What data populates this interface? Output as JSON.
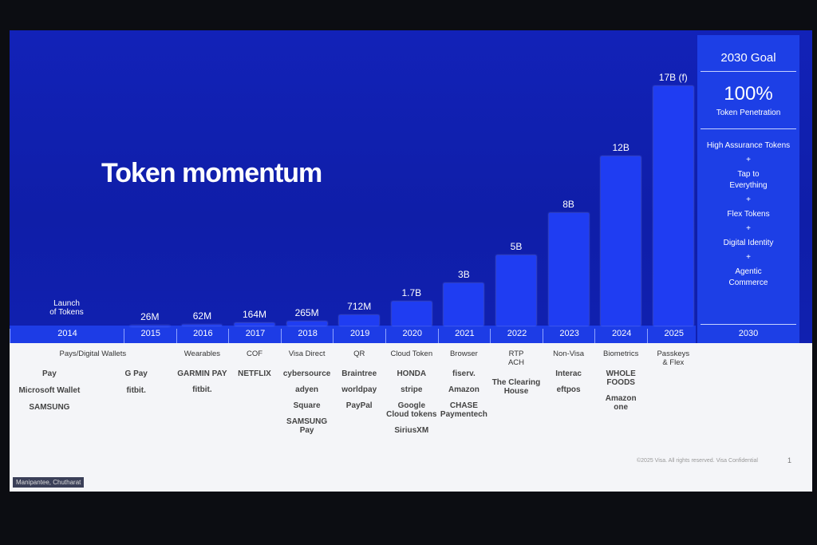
{
  "title": "Token momentum",
  "chart_data": {
    "type": "bar",
    "categories": [
      "2014",
      "2015",
      "2016",
      "2017",
      "2018",
      "2019",
      "2020",
      "2021",
      "2022",
      "2023",
      "2024",
      "2025"
    ],
    "values": [
      null,
      26,
      62,
      164,
      265,
      712,
      1700,
      3000,
      5000,
      8000,
      12000,
      17000
    ],
    "value_labels": [
      null,
      "26M",
      "62M",
      "164M",
      "265M",
      "712M",
      "1.7B",
      "3B",
      "5B",
      "8B",
      "12B",
      "17B (f)"
    ],
    "annotation": "Launch\nof Tokens",
    "color": "#1f3df2",
    "ylim": [
      0,
      17000
    ]
  },
  "features": [
    {
      "label": "Pays/Digital Wallets",
      "logos": [
        "Pay",
        "G Pay",
        "Microsoft Wallet",
        "fitbit.",
        "SAMSUNG"
      ]
    },
    {
      "label": "Wearables",
      "logos": [
        "GARMIN PAY",
        "fitbit."
      ]
    },
    {
      "label": "COF",
      "logos": [
        "NETFLIX"
      ]
    },
    {
      "label": "Visa Direct",
      "logos": [
        "cybersource",
        "adyen",
        "Square",
        "SAMSUNG\nPay"
      ]
    },
    {
      "label": "QR",
      "logos": [
        "Braintree",
        "worldpay",
        "PayPal"
      ]
    },
    {
      "label": "Cloud Token",
      "logos": [
        "HONDA",
        "stripe",
        "Google\nCloud tokens",
        "SiriusXM"
      ]
    },
    {
      "label": "Browser",
      "logos": [
        "fiserv.",
        "Amazon",
        "CHASE\nPaymentech"
      ]
    },
    {
      "label": "RTP\nACH",
      "logos": [
        "The Clearing House"
      ]
    },
    {
      "label": "Non-Visa",
      "logos": [
        "Interac",
        "eftpos"
      ]
    },
    {
      "label": "Biometrics",
      "logos": [
        "WHOLE FOODS",
        "Amazon\none"
      ]
    },
    {
      "label": "Passkeys\n& Flex",
      "logos": []
    }
  ],
  "goal": {
    "year": "2030",
    "title": "2030 Goal",
    "big": "100%",
    "sub": "Token Penetration",
    "items": [
      "High Assurance Tokens",
      "+",
      "Tap to\nEverything",
      "+",
      "Flex Tokens",
      "+",
      "Digital Identity",
      "+",
      "Agentic\nCommerce"
    ]
  },
  "footer": {
    "presenter": "Manipantee, Chutharat",
    "copyright": "©2025 Visa. All rights reserved. Visa Confidential",
    "page": "1"
  }
}
